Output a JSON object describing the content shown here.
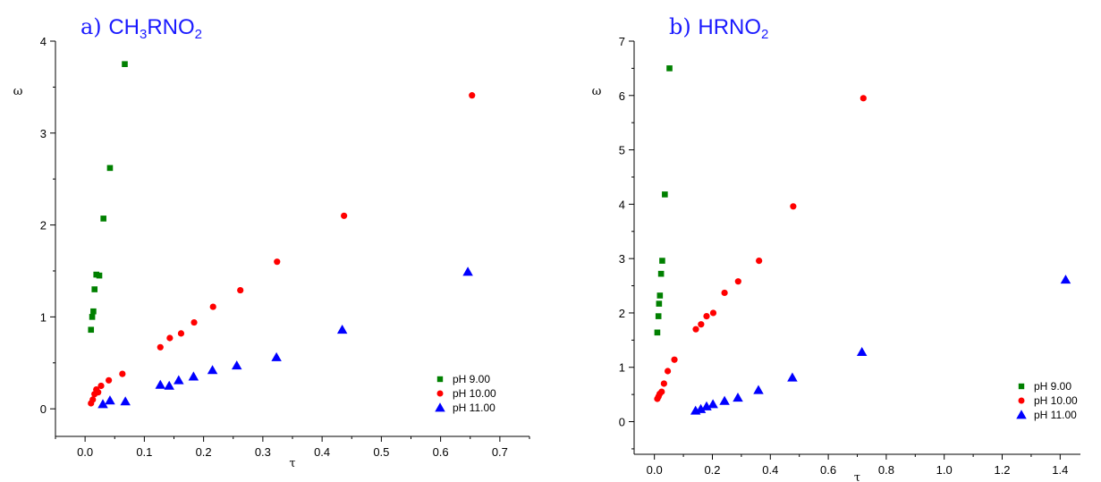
{
  "chart_data": [
    {
      "type": "scatter",
      "title_prefix": "a)",
      "title_formula": [
        "CH",
        "3",
        "RNO",
        "2"
      ],
      "title_text": "a) CH3RNO2",
      "xlabel": "τ",
      "ylabel": "ω",
      "xlim": [
        -0.05,
        0.75
      ],
      "ylim": [
        -0.3,
        4.0
      ],
      "xticks": [
        0.0,
        0.1,
        0.2,
        0.3,
        0.4,
        0.5,
        0.6,
        0.7
      ],
      "xtick_labels": [
        "0.0",
        "0.1",
        "0.2",
        "0.3",
        "0.4",
        "0.5",
        "0.6",
        "0.7"
      ],
      "yticks": [
        0,
        1,
        2,
        3,
        4
      ],
      "ytick_labels": [
        "0",
        "1",
        "2",
        "3",
        "4"
      ],
      "legend_position": "bottom-right",
      "series": [
        {
          "name": "pH  9.00",
          "marker": "square",
          "color": "#008000",
          "x": [
            0.01,
            0.012,
            0.014,
            0.016,
            0.019,
            0.024,
            0.031,
            0.042,
            0.067
          ],
          "y": [
            0.86,
            1.0,
            1.06,
            1.3,
            1.46,
            1.45,
            2.07,
            2.62,
            3.75
          ]
        },
        {
          "name": "pH 10.00",
          "marker": "circle",
          "color": "#ff0000",
          "x": [
            0.01,
            0.013,
            0.016,
            0.019,
            0.022,
            0.027,
            0.04,
            0.063,
            0.127,
            0.143,
            0.162,
            0.184,
            0.216,
            0.262,
            0.324,
            0.437,
            0.653
          ],
          "y": [
            0.06,
            0.1,
            0.16,
            0.21,
            0.18,
            0.25,
            0.31,
            0.38,
            0.67,
            0.77,
            0.82,
            0.94,
            1.11,
            1.29,
            1.6,
            2.1,
            3.41
          ],
          "x_note": ""
        },
        {
          "name": "pH 11.00",
          "marker": "triangle",
          "color": "#0000ff",
          "x": [
            0.03,
            0.042,
            0.068,
            0.127,
            0.142,
            0.158,
            0.183,
            0.215,
            0.256,
            0.323,
            0.434,
            0.646
          ],
          "y": [
            0.05,
            0.09,
            0.08,
            0.26,
            0.25,
            0.31,
            0.35,
            0.42,
            0.47,
            0.56,
            0.86,
            1.49
          ]
        }
      ]
    },
    {
      "type": "scatter",
      "title_prefix": "b)",
      "title_formula": [
        "HRNO",
        "2"
      ],
      "title_text": "b) HRNO2",
      "xlabel": "τ",
      "ylabel": "ω",
      "xlim": [
        -0.07,
        1.47
      ],
      "ylim": [
        -0.6,
        7.0
      ],
      "xticks": [
        0.0,
        0.2,
        0.4,
        0.6,
        0.8,
        1.0,
        1.2,
        1.4
      ],
      "xtick_labels": [
        "0.0",
        "0.2",
        "0.4",
        "0.6",
        "0.8",
        "1.0",
        "1.2",
        "1.4"
      ],
      "yticks": [
        0,
        1,
        2,
        3,
        4,
        5,
        6,
        7
      ],
      "ytick_labels": [
        "0",
        "1",
        "2",
        "3",
        "4",
        "5",
        "6",
        "7"
      ],
      "legend_position": "bottom-right",
      "series": [
        {
          "name": "pH  9.00",
          "marker": "square",
          "color": "#008000",
          "x": [
            0.01,
            0.014,
            0.016,
            0.019,
            0.023,
            0.027,
            0.036,
            0.052
          ],
          "y": [
            1.64,
            1.94,
            2.17,
            2.32,
            2.72,
            2.96,
            4.18,
            6.5
          ]
        },
        {
          "name": "pH 10.00",
          "marker": "circle",
          "color": "#ff0000",
          "x": [
            0.01,
            0.014,
            0.018,
            0.025,
            0.033,
            0.046,
            0.069,
            0.143,
            0.161,
            0.18,
            0.203,
            0.242,
            0.289,
            0.361,
            0.479,
            0.721
          ],
          "y": [
            0.42,
            0.46,
            0.51,
            0.55,
            0.7,
            0.93,
            1.14,
            1.7,
            1.79,
            1.94,
            2.0,
            2.37,
            2.58,
            2.96,
            3.96,
            5.95
          ]
        },
        {
          "name": "pH 11.00",
          "marker": "triangle",
          "color": "#0000ff",
          "x": [
            0.142,
            0.16,
            0.18,
            0.202,
            0.242,
            0.288,
            0.359,
            0.476,
            0.716,
            1.419
          ],
          "y": [
            0.2,
            0.23,
            0.28,
            0.32,
            0.38,
            0.44,
            0.58,
            0.81,
            1.28,
            2.61
          ]
        }
      ]
    }
  ]
}
